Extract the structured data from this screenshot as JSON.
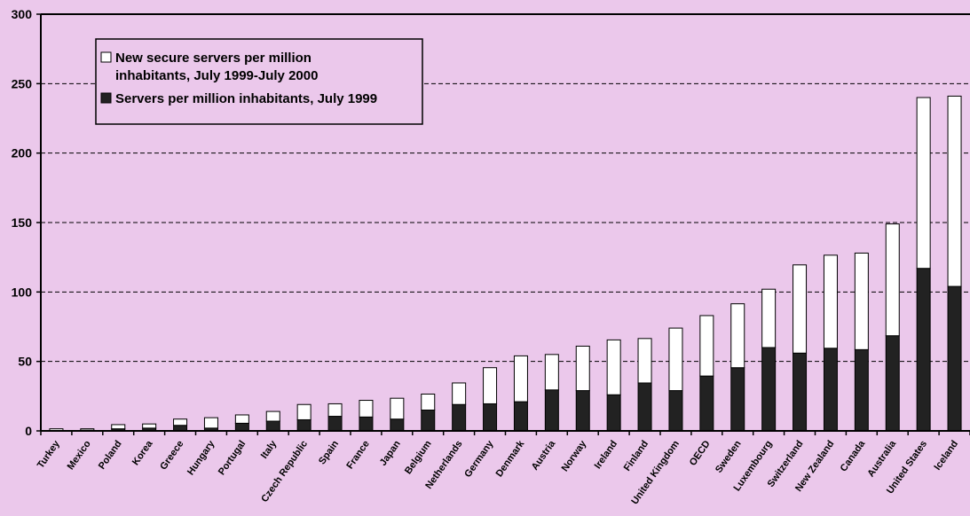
{
  "chart_data": {
    "type": "bar",
    "stacked": true,
    "categories": [
      "Turkey",
      "Mexico",
      "Poland",
      "Korea",
      "Greece",
      "Hungary",
      "Portugal",
      "Italy",
      "Czech Republic",
      "Spain",
      "France",
      "Japan",
      "Belgium",
      "Netherlands",
      "Germany",
      "Denmark",
      "Austria",
      "Norway",
      "Ireland",
      "Finland",
      "United Kingdom",
      "OECD",
      "Sweden",
      "Luxembourg",
      "Switzerland",
      "New Zealand",
      "Canada",
      "Australia",
      "United States",
      "Iceland"
    ],
    "series": [
      {
        "name": "Servers per million inhabitants, July 1999",
        "color": "#222222",
        "values": [
          0.3,
          0.5,
          1.5,
          2,
          4,
          2,
          5.5,
          7,
          8,
          10.5,
          10,
          8.5,
          15,
          19,
          19.5,
          21,
          29.5,
          29,
          26,
          34.5,
          29,
          39.5,
          45.5,
          60,
          56,
          59.5,
          58.5,
          68.5,
          117,
          104
        ]
      },
      {
        "name": "New secure servers per million inhabitants, July 1999-July 2000",
        "color": "#ffffff",
        "values": [
          1.2,
          1,
          3,
          3,
          4.5,
          7.5,
          6,
          7,
          11,
          9,
          12,
          15,
          11.5,
          15.5,
          26,
          33,
          25.5,
          32,
          39.5,
          32,
          45,
          43.5,
          46,
          42,
          63.5,
          67,
          69.5,
          80.5,
          123,
          137
        ]
      }
    ],
    "title": "",
    "xlabel": "",
    "ylabel": "",
    "ylim": [
      0,
      300
    ],
    "yticks": [
      "0",
      "50",
      "100",
      "150",
      "200",
      "250",
      "300"
    ],
    "grid": true,
    "legend_position": "top-left",
    "legend": [
      {
        "lines": [
          "New secure servers per million",
          "inhabitants, July 1999-July 2000"
        ],
        "color": "#ffffff"
      },
      {
        "lines": [
          "Servers per million inhabitants, July 1999"
        ],
        "color": "#222222"
      }
    ],
    "background_color": "#ebc8eb"
  }
}
